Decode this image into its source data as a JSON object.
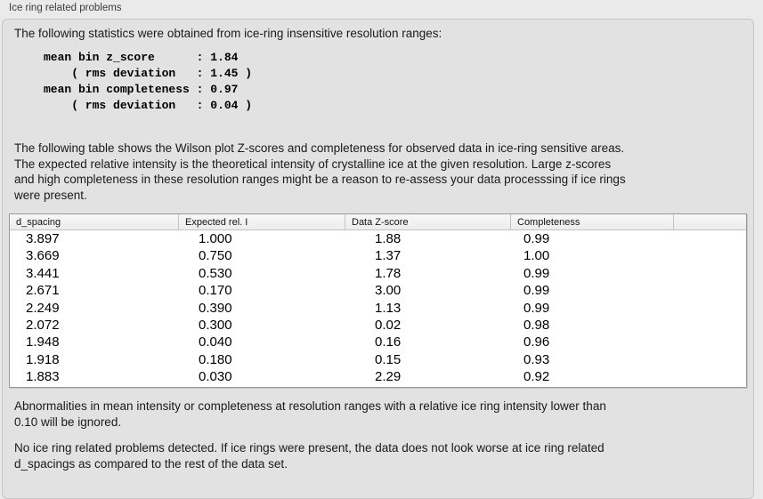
{
  "panel": {
    "title": "Ice ring related problems"
  },
  "intro": "The following statistics were obtained from ice-ring insensitive resolution ranges:",
  "stats_lines": [
    "mean bin z_score      : 1.84",
    "    ( rms deviation   : 1.45 )",
    "mean bin completeness : 0.97",
    "    ( rms deviation   : 0.04 )"
  ],
  "table_intro_lines": [
    "The following table shows the Wilson plot Z-scores and completeness for observed data in ice-ring sensitive areas.",
    "The expected relative intensity is the theoretical intensity of crystalline ice at the given resolution. Large z-scores",
    "and high completeness in these resolution ranges might be a reason to re-assess your data processsing if ice rings",
    "were present."
  ],
  "table": {
    "columns": [
      "d_spacing",
      "Expected rel. I",
      "Data Z-score",
      "Completeness",
      ""
    ],
    "rows": [
      [
        "3.897",
        "1.000",
        "1.88",
        "0.99"
      ],
      [
        "3.669",
        "0.750",
        "1.37",
        "1.00"
      ],
      [
        "3.441",
        "0.530",
        "1.78",
        "0.99"
      ],
      [
        "2.671",
        "0.170",
        "3.00",
        "0.99"
      ],
      [
        "2.249",
        "0.390",
        "1.13",
        "0.99"
      ],
      [
        "2.072",
        "0.300",
        "0.02",
        "0.98"
      ],
      [
        "1.948",
        "0.040",
        "0.16",
        "0.96"
      ],
      [
        "1.918",
        "0.180",
        "0.15",
        "0.93"
      ],
      [
        "1.883",
        "0.030",
        "2.29",
        "0.92"
      ]
    ]
  },
  "ignore_note_lines": [
    "Abnormalities in mean intensity or completeness at resolution ranges with a relative ice ring intensity lower than",
    "0.10 will be ignored."
  ],
  "conclusion_lines": [
    "No ice ring related problems detected. If ice rings were present, the data does not look worse at ice ring related",
    "d_spacings as compared to the rest of the data set."
  ],
  "colors": {
    "page_background": "#eaeaea",
    "groupbox_background": "#e2e2e2",
    "groupbox_border": "#c6c6c6",
    "table_border": "#989898",
    "header_separator": "#c4c4c4"
  }
}
